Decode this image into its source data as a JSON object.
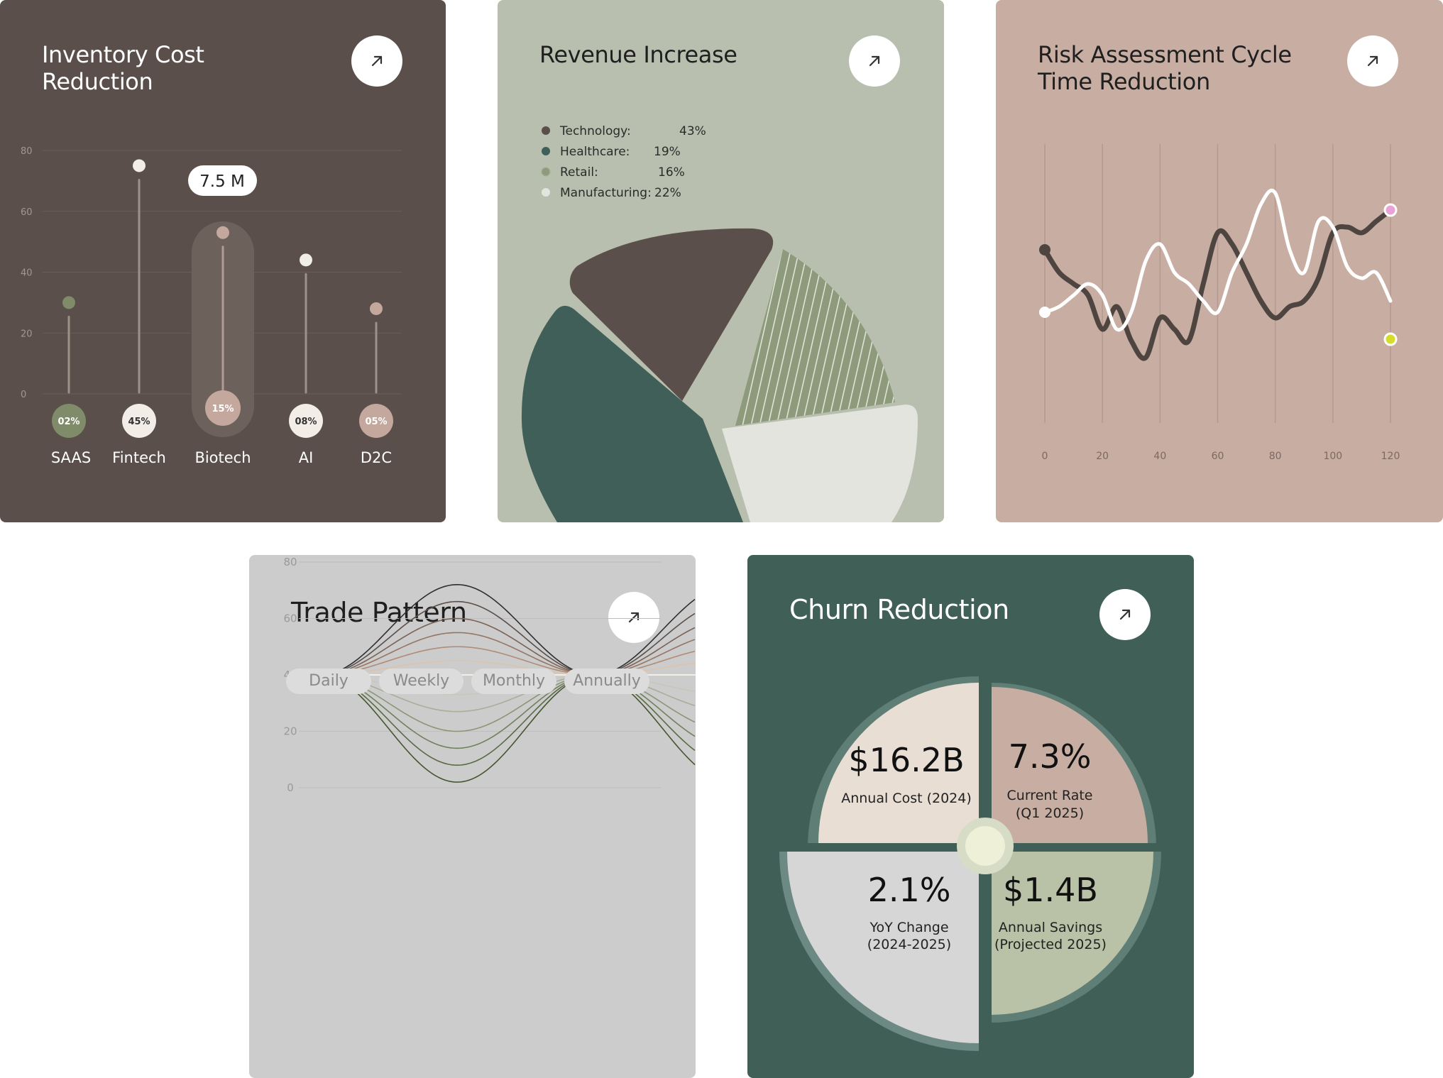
{
  "cards": {
    "inventory": {
      "title_line1": "Inventory Cost",
      "title_line2": "Reduction",
      "tooltip": "7.5 M",
      "colors": {
        "bg": "#5a4f4a",
        "highlight": "#c4a89d"
      }
    },
    "revenue": {
      "title": "Revenue Increase",
      "colors": {
        "bg": "#b8bfae",
        "technology": "#5a4f4a",
        "healthcare": "#3f5f58",
        "retail": "#8d9a7c",
        "manufacturing": "#e2e4dd"
      }
    },
    "risk": {
      "title_line1": "Risk Assessment Cycle",
      "title_line2": "Time Reduction",
      "colors": {
        "bg": "#c7ada2",
        "series_dark": "#4e4440",
        "series_light": "#ffffff",
        "end_pink": "#e8a2d8",
        "end_yellow": "#d6dd28"
      }
    },
    "trade": {
      "title": "Trade Pattern",
      "tabs": [
        "Daily",
        "Weekly",
        "Monthly",
        "Annually"
      ],
      "colors": {
        "bg": "#cccccc",
        "tab_bg": "#dcdcdc"
      }
    },
    "churn": {
      "title": "Churn Reduction",
      "quadrants": [
        {
          "value": "$16.2B",
          "label_line1": "Annual Cost (2024)",
          "label_line2": ""
        },
        {
          "value": "7.3%",
          "label_line1": "Current Rate",
          "label_line2": "(Q1 2025)"
        },
        {
          "value": "2.1%",
          "label_line1": "YoY Change",
          "label_line2": "(2024-2025)"
        },
        {
          "value": "$1.4B",
          "label_line1": "Annual Savings",
          "label_line2": "(Projected 2025)"
        }
      ],
      "colors": {
        "bg": "#3f5f57",
        "q1": "#e9ded4",
        "q2": "#c7ada2",
        "q3": "#d6d6d6",
        "q4": "#b9c1a6",
        "center": "#eef0d8"
      }
    }
  },
  "chart_data": [
    {
      "type": "lollipop",
      "categories": [
        "SAAS",
        "Fintech",
        "Biotech",
        "AI",
        "D2C"
      ],
      "values": [
        30,
        75,
        53,
        44,
        28
      ],
      "badges": [
        "02%",
        "45%",
        "15%",
        "08%",
        "05%"
      ],
      "highlight_index": 2,
      "highlight_label": "7.5 M",
      "yticks": [
        "80",
        "60",
        "40",
        "20",
        "0"
      ],
      "ylim": [
        0,
        80
      ],
      "grid": true,
      "colors": {
        "SAAS": "#7f8b69",
        "Fintech": "#f2ede6",
        "Biotech": "#c4a89d",
        "AI": "#f2ede6",
        "D2C": "#c4a89d"
      }
    },
    {
      "type": "pie",
      "legend": [
        {
          "name": "Technology:",
          "pct": "43%"
        },
        {
          "name": "Healthcare:",
          "pct": "19%"
        },
        {
          "name": "Retail:",
          "pct": "16%"
        },
        {
          "name": "Manufacturing:",
          "pct": "22%"
        }
      ],
      "legend_position": "top-left"
    },
    {
      "type": "line",
      "xticks": [
        "0",
        "20",
        "40",
        "60",
        "80",
        "100",
        "120"
      ],
      "xlim": [
        0,
        120
      ],
      "ylim": [
        0,
        100
      ],
      "grid": "vertical",
      "series": [
        {
          "color": "dark",
          "points": [
            [
              0,
              62
            ],
            [
              5,
              54
            ],
            [
              10,
              50
            ],
            [
              15,
              46
            ],
            [
              20,
              34
            ],
            [
              25,
              42
            ],
            [
              30,
              30
            ],
            [
              35,
              24
            ],
            [
              40,
              38
            ],
            [
              45,
              34
            ],
            [
              50,
              30
            ],
            [
              55,
              50
            ],
            [
              60,
              68
            ],
            [
              65,
              64
            ],
            [
              70,
              54
            ],
            [
              75,
              44
            ],
            [
              80,
              38
            ],
            [
              85,
              42
            ],
            [
              90,
              44
            ],
            [
              95,
              52
            ],
            [
              100,
              68
            ],
            [
              105,
              70
            ],
            [
              110,
              68
            ],
            [
              115,
              72
            ],
            [
              120,
              76
            ]
          ]
        },
        {
          "color": "light",
          "points": [
            [
              0,
              40
            ],
            [
              5,
              42
            ],
            [
              10,
              46
            ],
            [
              15,
              50
            ],
            [
              20,
              46
            ],
            [
              25,
              34
            ],
            [
              30,
              40
            ],
            [
              35,
              58
            ],
            [
              40,
              64
            ],
            [
              45,
              54
            ],
            [
              50,
              50
            ],
            [
              55,
              44
            ],
            [
              60,
              40
            ],
            [
              65,
              54
            ],
            [
              70,
              64
            ],
            [
              75,
              78
            ],
            [
              80,
              82
            ],
            [
              85,
              62
            ],
            [
              90,
              54
            ],
            [
              95,
              72
            ],
            [
              100,
              70
            ],
            [
              105,
              56
            ],
            [
              110,
              52
            ],
            [
              115,
              54
            ],
            [
              120,
              44
            ]
          ]
        }
      ]
    },
    {
      "type": "line",
      "yticks": [
        "80",
        "60",
        "40",
        "20",
        "0"
      ],
      "ylim": [
        0,
        80
      ],
      "grid": true,
      "series_amplitudes": [
        32,
        26,
        20,
        15,
        10,
        5,
        -7,
        -13,
        -20,
        -26,
        -32,
        -38
      ],
      "baseline": 40,
      "colors": [
        "#2f2f2f",
        "#5a4f4a",
        "#7a6255",
        "#957563",
        "#b08b75",
        "#dcc3ac",
        "#c7c7bd",
        "#a8ae98",
        "#8b9577",
        "#70805c",
        "#586b44",
        "#45562f"
      ]
    }
  ]
}
